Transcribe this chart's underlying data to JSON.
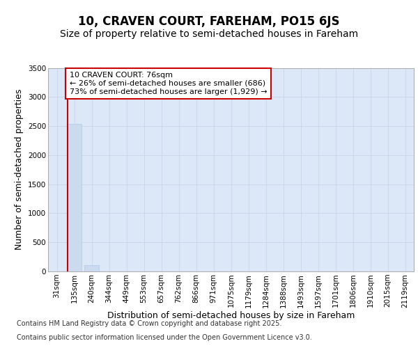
{
  "title_line1": "10, CRAVEN COURT, FAREHAM, PO15 6JS",
  "title_line2": "Size of property relative to semi-detached houses in Fareham",
  "xlabel": "Distribution of semi-detached houses by size in Fareham",
  "ylabel": "Number of semi-detached properties",
  "categories": [
    "31sqm",
    "135sqm",
    "240sqm",
    "344sqm",
    "449sqm",
    "553sqm",
    "657sqm",
    "762sqm",
    "866sqm",
    "971sqm",
    "1075sqm",
    "1179sqm",
    "1284sqm",
    "1388sqm",
    "1493sqm",
    "1597sqm",
    "1701sqm",
    "1806sqm",
    "1910sqm",
    "2015sqm",
    "2119sqm"
  ],
  "values": [
    0,
    2540,
    105,
    0,
    0,
    0,
    0,
    0,
    0,
    0,
    0,
    0,
    0,
    0,
    0,
    0,
    0,
    0,
    0,
    0,
    0
  ],
  "bar_color": "#ccdaf0",
  "bar_edge_color": "#b0c8e8",
  "red_line_x": 0.6,
  "ylim": [
    0,
    3500
  ],
  "yticks": [
    0,
    500,
    1000,
    1500,
    2000,
    2500,
    3000,
    3500
  ],
  "annotation_title": "10 CRAVEN COURT: 76sqm",
  "annotation_line2": "← 26% of semi-detached houses are smaller (686)",
  "annotation_line3": "73% of semi-detached houses are larger (1,929) →",
  "annotation_box_color": "#ffffff",
  "annotation_box_edge": "#cc0000",
  "grid_color": "#c8d4e8",
  "background_color": "#dce8f8",
  "footer_line1": "Contains HM Land Registry data © Crown copyright and database right 2025.",
  "footer_line2": "Contains public sector information licensed under the Open Government Licence v3.0.",
  "title_fontsize": 12,
  "subtitle_fontsize": 10,
  "tick_fontsize": 7.5,
  "ylabel_fontsize": 9,
  "xlabel_fontsize": 9,
  "footer_fontsize": 7
}
